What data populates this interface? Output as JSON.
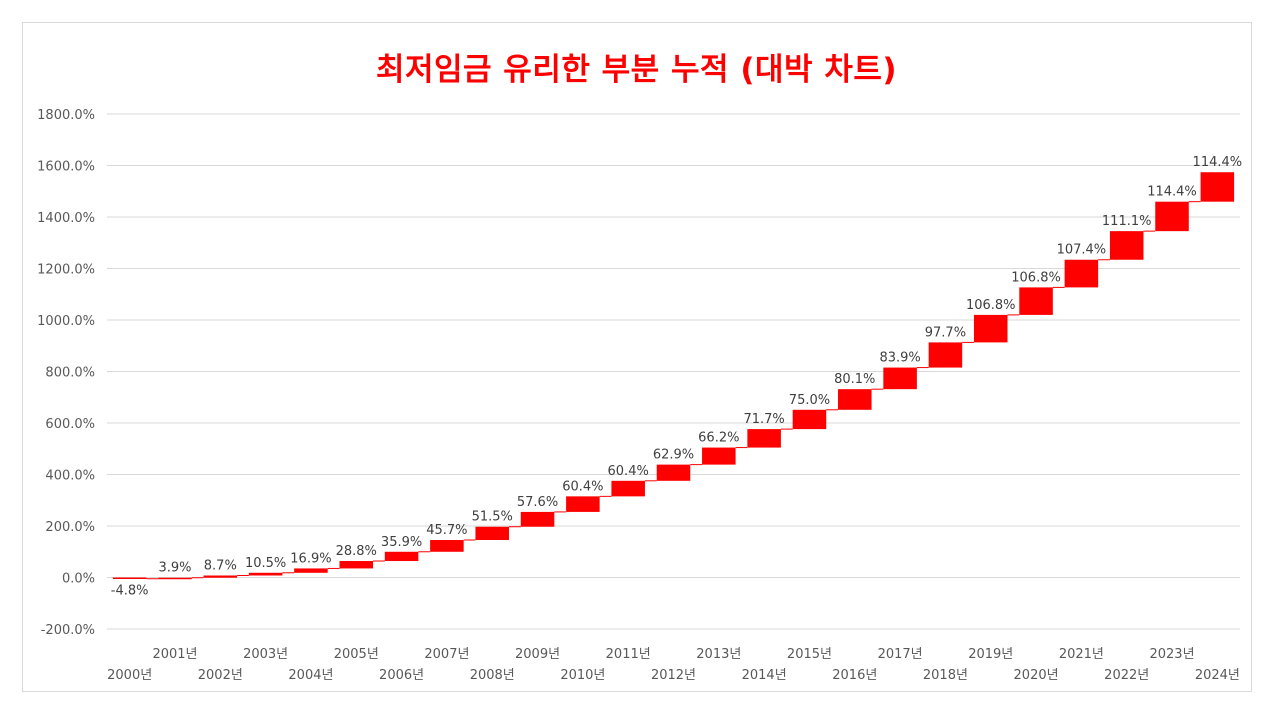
{
  "chart_data": {
    "type": "waterfall",
    "title": "최저임금 유리한 부분 누적 (대박 차트)",
    "categories": [
      "2000년",
      "2001년",
      "2002년",
      "2003년",
      "2004년",
      "2005년",
      "2006년",
      "2007년",
      "2008년",
      "2009년",
      "2010년",
      "2011년",
      "2012년",
      "2013년",
      "2014년",
      "2015년",
      "2016년",
      "2017년",
      "2018년",
      "2019년",
      "2020년",
      "2021년",
      "2022년",
      "2023년",
      "2024년"
    ],
    "values": [
      -4.8,
      3.9,
      8.7,
      10.5,
      16.9,
      28.8,
      35.9,
      45.7,
      51.5,
      57.6,
      60.4,
      60.4,
      62.9,
      66.2,
      71.7,
      75.0,
      80.1,
      83.9,
      97.7,
      106.8,
      106.8,
      107.4,
      111.1,
      114.4,
      114.4
    ],
    "data_labels": [
      "-4.8%",
      "3.9%",
      "8.7%",
      "10.5%",
      "16.9%",
      "28.8%",
      "35.9%",
      "45.7%",
      "51.5%",
      "57.6%",
      "60.4%",
      "60.4%",
      "62.9%",
      "66.2%",
      "71.7%",
      "75.0%",
      "80.1%",
      "83.9%",
      "97.7%",
      "106.8%",
      "106.8%",
      "107.4%",
      "111.1%",
      "114.4%",
      "114.4%"
    ],
    "y_ticks": [
      "1800.0%",
      "1600.0%",
      "1400.0%",
      "1200.0%",
      "1000.0%",
      "800.0%",
      "600.0%",
      "400.0%",
      "200.0%",
      "0.0%",
      "-200.0%"
    ],
    "ylim": [
      -200,
      1800
    ],
    "grid": true,
    "legend": "none",
    "bar_color": "#ff0000",
    "connector_color": "#ff0000",
    "grid_color": "#d9d9d9"
  }
}
